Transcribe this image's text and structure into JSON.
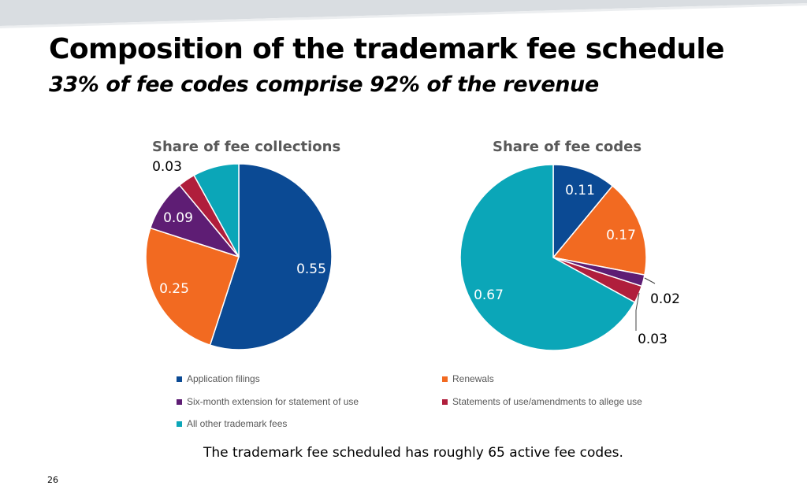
{
  "slide": {
    "title": "Composition of the trademark fee schedule",
    "subtitle": "33% of fee codes comprise 92% of the revenue",
    "footnote": "The trademark fee scheduled has roughly 65 active fee codes.",
    "page_number": "26"
  },
  "legend": [
    {
      "label": "Application filings",
      "color": "#0B4A94"
    },
    {
      "label": "Renewals",
      "color": "#F26A21"
    },
    {
      "label": "Six-month extension for statement of use",
      "color": "#5E1D74"
    },
    {
      "label": "Statements of use/amendments to allege use",
      "color": "#B01E3C"
    },
    {
      "label": "All other trademark fees",
      "color": "#0BA6B8"
    }
  ],
  "chart_data": [
    {
      "type": "pie",
      "title": "Share of fee collections",
      "categories": [
        "Application filings",
        "Renewals",
        "Six-month extension for statement of use",
        "Statements of use/amendments to allege use",
        "All other trademark fees"
      ],
      "values": [
        0.55,
        0.25,
        0.09,
        0.03,
        0.08
      ],
      "data_labels": [
        "0.55",
        "0.25",
        "0.09",
        "0.03",
        ""
      ],
      "colors": [
        "#0B4A94",
        "#F26A21",
        "#5E1D74",
        "#B01E3C",
        "#0BA6B8"
      ]
    },
    {
      "type": "pie",
      "title": "Share of fee codes",
      "categories": [
        "Application filings",
        "Renewals",
        "Six-month extension for statement of use",
        "Statements of use/amendments to allege use",
        "All other trademark fees"
      ],
      "values": [
        0.11,
        0.17,
        0.02,
        0.03,
        0.67
      ],
      "data_labels": [
        "0.11",
        "0.17",
        "0.02",
        "0.03",
        "0.67"
      ],
      "colors": [
        "#0B4A94",
        "#F26A21",
        "#5E1D74",
        "#B01E3C",
        "#0BA6B8"
      ]
    }
  ]
}
